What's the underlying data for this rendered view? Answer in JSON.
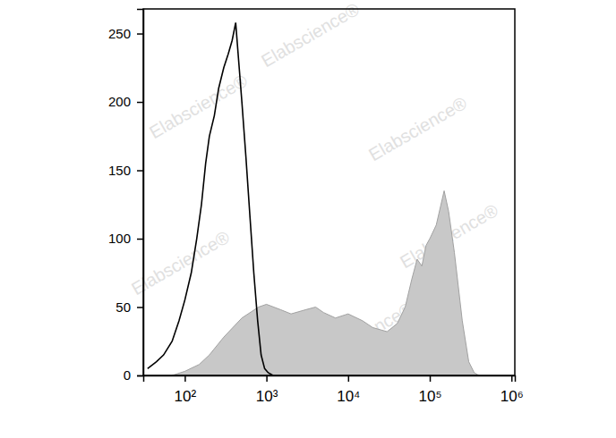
{
  "chart_data": {
    "type": "histogram",
    "log": "x",
    "watermark": "Elabscience®",
    "xlim": [
      31,
      1100000
    ],
    "xticks": [
      {
        "value": 100,
        "label": "10²"
      },
      {
        "value": 1000,
        "label": "10³"
      },
      {
        "value": 10000,
        "label": "10⁴"
      },
      {
        "value": 100000,
        "label": "10⁵"
      },
      {
        "value": 1000000,
        "label": "10⁶"
      }
    ],
    "ylim": [
      0,
      268
    ],
    "yticks": [
      0,
      50,
      100,
      150,
      200,
      250
    ],
    "series": [
      {
        "type": "area",
        "color": "#c8c8c8",
        "x": [
          70,
          100,
          150,
          200,
          300,
          500,
          800,
          1000,
          1500,
          2000,
          3000,
          4000,
          5000,
          7000,
          10000,
          15000,
          20000,
          30000,
          40000,
          50000,
          60000,
          70000,
          80000,
          90000,
          100000,
          120000,
          150000,
          170000,
          200000,
          250000,
          300000,
          350000,
          400000
        ],
        "values": [
          0,
          3,
          8,
          15,
          28,
          42,
          50,
          52,
          48,
          45,
          48,
          50,
          46,
          42,
          45,
          40,
          35,
          32,
          38,
          50,
          70,
          85,
          80,
          95,
          100,
          110,
          135,
          120,
          90,
          40,
          10,
          2,
          0
        ]
      },
      {
        "type": "line",
        "color": "#000000",
        "x": [
          35,
          45,
          55,
          70,
          85,
          100,
          120,
          140,
          160,
          180,
          200,
          230,
          260,
          300,
          340,
          380,
          420,
          450,
          500,
          560,
          630,
          700,
          780,
          860,
          950,
          1050,
          1200
        ],
        "values": [
          5,
          10,
          15,
          25,
          40,
          55,
          75,
          100,
          125,
          155,
          175,
          190,
          210,
          225,
          235,
          245,
          258,
          235,
          200,
          160,
          115,
          75,
          40,
          15,
          5,
          2,
          0
        ]
      }
    ]
  }
}
